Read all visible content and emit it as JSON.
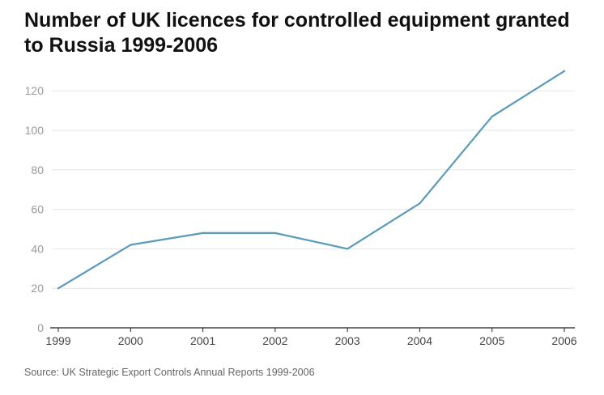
{
  "chart_data": {
    "type": "line",
    "title": "Number of UK licences for controlled equipment granted to Russia 1999-2006",
    "xlabel": "",
    "ylabel": "",
    "categories": [
      "1999",
      "2000",
      "2001",
      "2002",
      "2003",
      "2004",
      "2005",
      "2006"
    ],
    "series": [
      {
        "values": [
          20,
          42,
          48,
          48,
          40,
          63,
          107,
          130
        ]
      }
    ],
    "ylim": [
      0,
      130
    ],
    "yticks": [
      0,
      20,
      40,
      60,
      80,
      100,
      120
    ],
    "grid": true,
    "legend": "none",
    "line_color": "#5b9ab8",
    "grid_color": "#e6e6e6",
    "axis_color": "#222222",
    "ytick_color": "#9a9a9a",
    "xtick_color": "#444444"
  },
  "source": "Source: UK Strategic Export Controls Annual Reports 1999-2006"
}
